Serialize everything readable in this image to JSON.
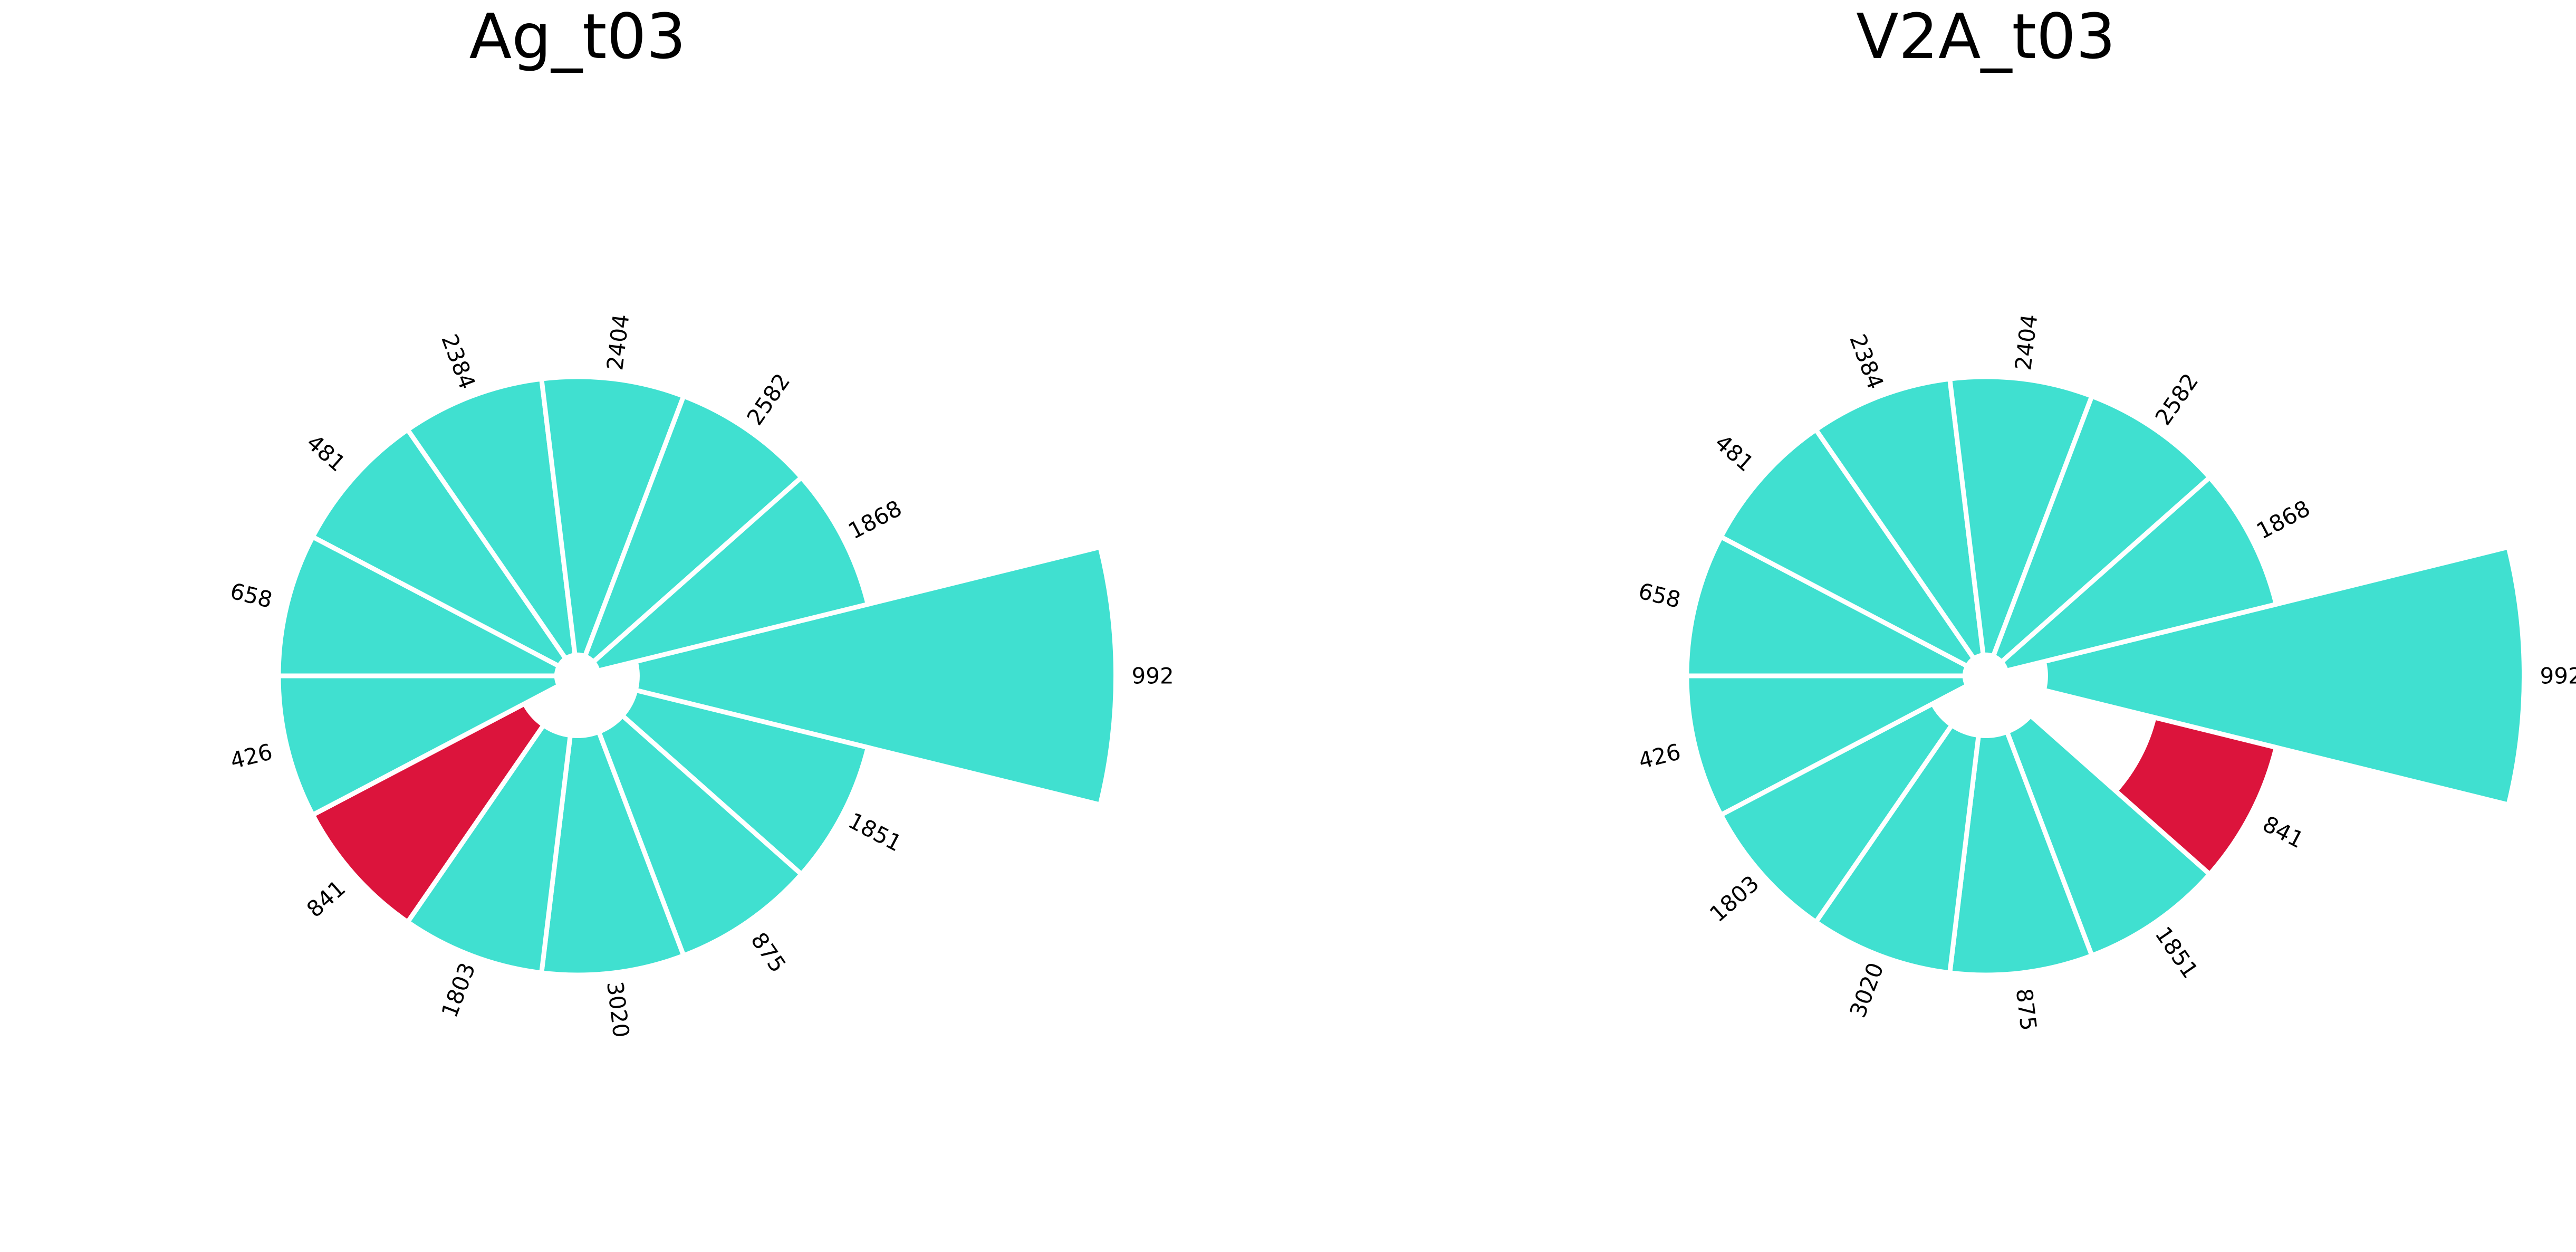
{
  "colors": {
    "default_bar": "#40E0D0",
    "highlight_bar": "#DC143C",
    "bar_edge": "#FFFFFF",
    "background": "#FFFFFF",
    "text": "#000000"
  },
  "chart_data": [
    {
      "type": "polar-bar",
      "title": "Ag_t03",
      "legend": "none",
      "grid": false,
      "direction": "clockwise",
      "categories": [
        "992",
        "1851",
        "875",
        "3020",
        "1803",
        "841",
        "426",
        "658",
        "481",
        "2384",
        "2404",
        "2582",
        "1868"
      ],
      "values": [
        1.8,
        1.0,
        1.0,
        1.0,
        1.0,
        1.0,
        1.0,
        1.0,
        1.0,
        1.0,
        1.0,
        1.0,
        1.0
      ],
      "inner_values": [
        0.2,
        0.2,
        0.2,
        0.2,
        0.2,
        0.2,
        0.07,
        0.07,
        0.07,
        0.07,
        0.07,
        0.07,
        0.07
      ],
      "highlight": "841",
      "rlim": [
        0,
        1.8
      ]
    },
    {
      "type": "polar-bar",
      "title": "V2A_t03",
      "legend": "none",
      "grid": false,
      "direction": "clockwise",
      "categories": [
        "992",
        "841",
        "1851",
        "875",
        "3020",
        "1803",
        "426",
        "658",
        "481",
        "2384",
        "2404",
        "2582",
        "1868"
      ],
      "values": [
        1.8,
        1.0,
        1.0,
        1.0,
        1.0,
        1.0,
        1.0,
        1.0,
        1.0,
        1.0,
        1.0,
        1.0,
        1.0
      ],
      "inner_values": [
        0.2,
        0.58,
        0.2,
        0.2,
        0.2,
        0.2,
        0.07,
        0.07,
        0.07,
        0.07,
        0.07,
        0.07,
        0.07
      ],
      "highlight": "841",
      "rlim": [
        0,
        1.8
      ]
    }
  ]
}
